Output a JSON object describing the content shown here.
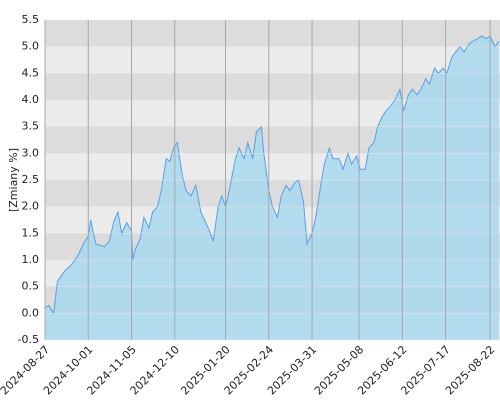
{
  "chart_data": {
    "type": "area",
    "ylabel": "[Zmiany %]",
    "x": [
      "2024-08-27",
      "2024-08-30",
      "2024-09-03",
      "2024-09-06",
      "2024-09-12",
      "2024-09-17",
      "2024-09-23",
      "2024-09-27",
      "2024-10-01",
      "2024-10-03",
      "2024-10-07",
      "2024-10-14",
      "2024-10-18",
      "2024-10-22",
      "2024-10-25",
      "2024-10-28",
      "2024-11-01",
      "2024-11-05",
      "2024-11-06",
      "2024-11-08",
      "2024-11-12",
      "2024-11-15",
      "2024-11-19",
      "2024-11-22",
      "2024-11-26",
      "2024-11-29",
      "2024-12-03",
      "2024-12-06",
      "2024-12-09",
      "2024-12-12",
      "2024-12-16",
      "2024-12-19",
      "2024-12-23",
      "2024-12-27",
      "2024-12-31",
      "2025-01-06",
      "2025-01-10",
      "2025-01-14",
      "2025-01-17",
      "2025-01-20",
      "2025-01-23",
      "2025-01-28",
      "2025-01-31",
      "2025-02-04",
      "2025-02-07",
      "2025-02-11",
      "2025-02-14",
      "2025-02-18",
      "2025-02-20",
      "2025-02-24",
      "2025-02-27",
      "2025-03-03",
      "2025-03-06",
      "2025-03-10",
      "2025-03-13",
      "2025-03-17",
      "2025-03-20",
      "2025-03-24",
      "2025-03-27",
      "2025-03-31",
      "2025-04-03",
      "2025-04-07",
      "2025-04-10",
      "2025-04-14",
      "2025-04-17",
      "2025-04-22",
      "2025-04-25",
      "2025-04-29",
      "2025-05-02",
      "2025-05-06",
      "2025-05-09",
      "2025-05-13",
      "2025-05-16",
      "2025-05-20",
      "2025-05-23",
      "2025-05-27",
      "2025-05-30",
      "2025-06-03",
      "2025-06-06",
      "2025-06-10",
      "2025-06-13",
      "2025-06-17",
      "2025-06-20",
      "2025-06-24",
      "2025-06-27",
      "2025-07-01",
      "2025-07-04",
      "2025-07-08",
      "2025-07-11",
      "2025-07-15",
      "2025-07-18",
      "2025-07-22",
      "2025-07-25",
      "2025-07-29",
      "2025-08-01",
      "2025-08-05",
      "2025-08-08",
      "2025-08-12",
      "2025-08-15",
      "2025-08-19",
      "2025-08-22",
      "2025-08-26",
      "2025-08-29"
    ],
    "values": [
      0.1,
      0.15,
      0.0,
      0.6,
      0.8,
      0.9,
      1.1,
      1.3,
      1.45,
      1.75,
      1.3,
      1.25,
      1.35,
      1.75,
      1.9,
      1.5,
      1.7,
      1.55,
      1.0,
      1.2,
      1.4,
      1.8,
      1.6,
      1.9,
      2.0,
      2.3,
      2.9,
      2.85,
      3.1,
      3.2,
      2.6,
      2.3,
      2.2,
      2.4,
      1.9,
      1.6,
      1.35,
      2.0,
      2.2,
      2.0,
      2.3,
      2.9,
      3.1,
      2.9,
      3.2,
      2.9,
      3.4,
      3.5,
      3.0,
      2.3,
      2.0,
      1.8,
      2.2,
      2.4,
      2.3,
      2.45,
      2.5,
      2.1,
      1.3,
      1.5,
      1.8,
      2.4,
      2.8,
      3.1,
      2.9,
      2.9,
      2.7,
      3.0,
      2.8,
      2.95,
      2.7,
      2.7,
      3.1,
      3.2,
      3.5,
      3.7,
      3.8,
      3.9,
      4.0,
      4.2,
      3.8,
      4.1,
      4.2,
      4.1,
      4.2,
      4.4,
      4.3,
      4.6,
      4.5,
      4.6,
      4.5,
      4.8,
      4.9,
      5.0,
      4.9,
      5.05,
      5.1,
      5.15,
      5.2,
      5.15,
      5.2,
      5.0,
      5.1
    ],
    "color": "#5aa0e6",
    "fill": "#a9d8ee",
    "xlim": [
      "2024-08-27",
      "2025-08-30"
    ],
    "xticks": [
      "2024-08-27",
      "2024-10-01",
      "2024-11-05",
      "2024-12-10",
      "2025-01-20",
      "2025-02-24",
      "2025-03-31",
      "2025-05-08",
      "2025-06-12",
      "2025-07-17",
      "2025-08-22"
    ],
    "ylim": [
      -0.5,
      5.5
    ],
    "yticks": [
      -0.5,
      {
        "value": 0,
        "label": "0.0"
      },
      0.5,
      {
        "value": 1,
        "label": "1.0"
      },
      1.5,
      {
        "value": 2,
        "label": "2.0"
      },
      2.5,
      {
        "value": 3,
        "label": "3.0"
      },
      3.5,
      {
        "value": 4,
        "label": "4.0"
      },
      4.5,
      {
        "value": 5,
        "label": "5.0"
      },
      5.5
    ],
    "grid": true,
    "band_colors": [
      "#dcdcdc",
      "#ebebeb"
    ]
  }
}
